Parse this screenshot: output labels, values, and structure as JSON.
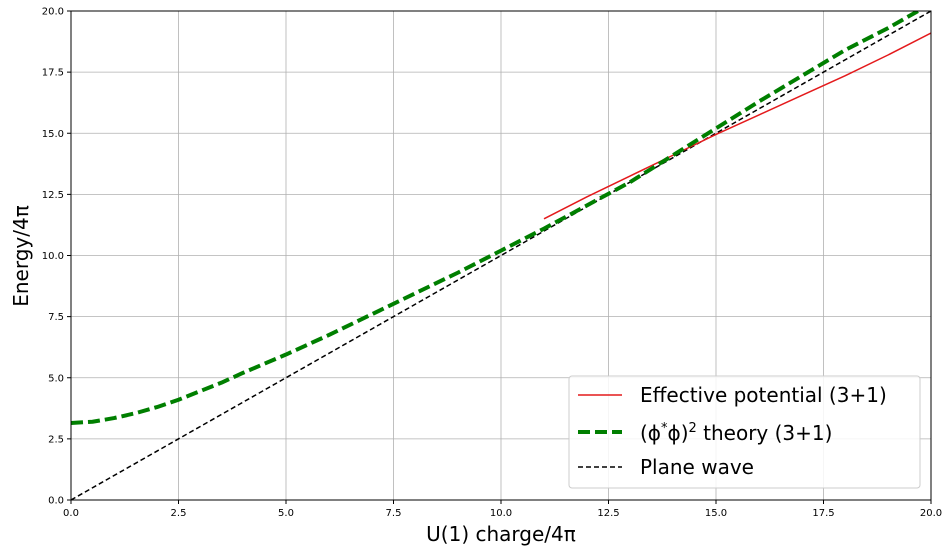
{
  "chart_data": {
    "type": "line",
    "xlabel": "U(1) charge/4π",
    "ylabel": "Energy/4π",
    "xlim": [
      0,
      20
    ],
    "ylim": [
      0,
      20
    ],
    "grid": true,
    "legend_position": "bottom-right",
    "x_ticks": [
      "0.0",
      "2.5",
      "5.0",
      "7.5",
      "10.0",
      "12.5",
      "15.0",
      "17.5",
      "20.0"
    ],
    "y_ticks": [
      "0.0",
      "2.5",
      "5.0",
      "7.5",
      "10.0",
      "12.5",
      "15.0",
      "17.5",
      "20.0"
    ],
    "series": [
      {
        "name": "Effective potential (3+1)",
        "color": "#e41a1c",
        "style": "solid",
        "x": [
          11.0,
          12.0,
          13.0,
          14.0,
          15.0,
          16.0,
          17.0,
          18.0,
          19.0,
          20.0
        ],
        "y": [
          11.5,
          12.4,
          13.25,
          14.1,
          14.95,
          15.75,
          16.55,
          17.35,
          18.2,
          19.1
        ]
      },
      {
        "name_prefix": "(ϕ",
        "name_sup1": "*",
        "name_mid": "ϕ)",
        "name_sup2": "2",
        "name_suffix": " theory (3+1)",
        "color": "#007f00",
        "style": "dashed-thick",
        "x": [
          0.0,
          0.5,
          1.0,
          1.5,
          2.0,
          2.5,
          3.0,
          3.5,
          4.0,
          5.0,
          6.0,
          7.0,
          8.0,
          9.0,
          10.0,
          11.0,
          12.0,
          13.0,
          14.0,
          15.0,
          16.0,
          17.0,
          18.0,
          19.0,
          20.0
        ],
        "y": [
          3.15,
          3.2,
          3.35,
          3.55,
          3.8,
          4.1,
          4.45,
          4.8,
          5.2,
          5.95,
          6.75,
          7.6,
          8.45,
          9.3,
          10.2,
          11.1,
          12.05,
          13.0,
          14.1,
          15.2,
          16.3,
          17.35,
          18.4,
          19.3,
          20.3
        ]
      },
      {
        "name": "Plane wave",
        "color": "#000000",
        "style": "dashed",
        "x": [
          0,
          20
        ],
        "y": [
          0,
          20
        ]
      }
    ]
  }
}
